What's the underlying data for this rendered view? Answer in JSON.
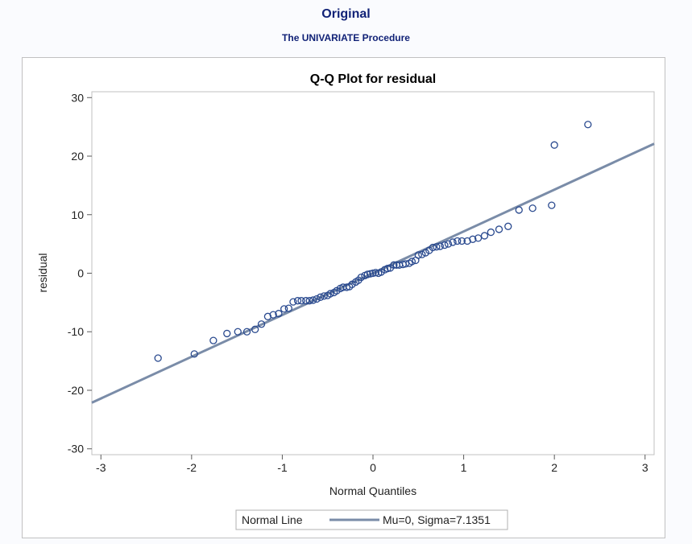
{
  "header": {
    "title": "Original",
    "subtitle": "The UNIVARIATE Procedure"
  },
  "colors": {
    "header_text": "#112277",
    "marker": "#2a4a8f",
    "normal_line": "#7a8ca8",
    "frame": "#c1c1c1",
    "axis": "#5a5a5a"
  },
  "chart_data": {
    "type": "scatter",
    "title": "Q-Q Plot for residual",
    "xlabel": "Normal Quantiles",
    "ylabel": "residual",
    "xlim": [
      -3.1,
      3.1
    ],
    "ylim": [
      -31,
      31
    ],
    "x_ticks": [
      -3,
      -2,
      -1,
      0,
      1,
      2,
      3
    ],
    "y_ticks": [
      30,
      20,
      10,
      0,
      -10,
      -20,
      -30
    ],
    "grid": false,
    "legend": {
      "placement": "bottom-center",
      "title": "Normal Line",
      "entry": "Mu=0, Sigma=7.1351"
    },
    "normal_line": {
      "mu": 0,
      "sigma": 7.1351
    },
    "series": [
      {
        "points": [
          [
            -2.37,
            -14.5
          ],
          [
            -1.97,
            -13.8
          ],
          [
            -1.76,
            -11.5
          ],
          [
            -1.61,
            -10.3
          ],
          [
            -1.49,
            -10.0
          ],
          [
            -1.39,
            -10.0
          ],
          [
            -1.3,
            -9.6
          ],
          [
            -1.23,
            -8.7
          ],
          [
            -1.16,
            -7.4
          ],
          [
            -1.1,
            -7.1
          ],
          [
            -1.04,
            -6.9
          ],
          [
            -0.98,
            -6.1
          ],
          [
            -0.93,
            -6.0
          ],
          [
            -0.88,
            -4.9
          ],
          [
            -0.83,
            -4.7
          ],
          [
            -0.79,
            -4.7
          ],
          [
            -0.74,
            -4.7
          ],
          [
            -0.7,
            -4.7
          ],
          [
            -0.66,
            -4.6
          ],
          [
            -0.62,
            -4.4
          ],
          [
            -0.58,
            -4.1
          ],
          [
            -0.54,
            -3.9
          ],
          [
            -0.5,
            -3.8
          ],
          [
            -0.47,
            -3.5
          ],
          [
            -0.43,
            -3.3
          ],
          [
            -0.4,
            -3.0
          ],
          [
            -0.36,
            -2.6
          ],
          [
            -0.33,
            -2.4
          ],
          [
            -0.29,
            -2.4
          ],
          [
            -0.26,
            -2.3
          ],
          [
            -0.23,
            -1.9
          ],
          [
            -0.19,
            -1.5
          ],
          [
            -0.16,
            -1.2
          ],
          [
            -0.13,
            -0.7
          ],
          [
            -0.09,
            -0.4
          ],
          [
            -0.06,
            -0.2
          ],
          [
            -0.03,
            -0.1
          ],
          [
            0.0,
            0.0
          ],
          [
            0.03,
            0.1
          ],
          [
            0.06,
            0.0
          ],
          [
            0.09,
            0.2
          ],
          [
            0.13,
            0.6
          ],
          [
            0.16,
            0.8
          ],
          [
            0.19,
            0.9
          ],
          [
            0.23,
            1.4
          ],
          [
            0.26,
            1.4
          ],
          [
            0.29,
            1.4
          ],
          [
            0.33,
            1.5
          ],
          [
            0.36,
            1.6
          ],
          [
            0.4,
            1.7
          ],
          [
            0.43,
            2.0
          ],
          [
            0.47,
            2.2
          ],
          [
            0.5,
            3.1
          ],
          [
            0.54,
            3.2
          ],
          [
            0.58,
            3.5
          ],
          [
            0.62,
            3.9
          ],
          [
            0.66,
            4.4
          ],
          [
            0.7,
            4.5
          ],
          [
            0.74,
            4.6
          ],
          [
            0.79,
            4.8
          ],
          [
            0.83,
            5.0
          ],
          [
            0.88,
            5.3
          ],
          [
            0.93,
            5.5
          ],
          [
            0.98,
            5.5
          ],
          [
            1.04,
            5.5
          ],
          [
            1.1,
            5.8
          ],
          [
            1.16,
            6.0
          ],
          [
            1.23,
            6.4
          ],
          [
            1.3,
            7.0
          ],
          [
            1.39,
            7.5
          ],
          [
            1.49,
            8.0
          ],
          [
            1.61,
            10.8
          ],
          [
            1.76,
            11.1
          ],
          [
            1.97,
            11.6
          ],
          [
            2.0,
            21.9
          ],
          [
            2.37,
            25.4
          ]
        ]
      }
    ]
  }
}
